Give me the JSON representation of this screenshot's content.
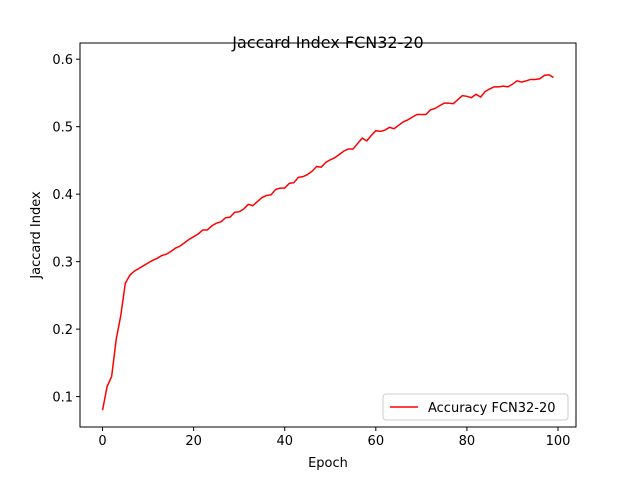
{
  "chart_data": {
    "type": "line",
    "title": "Jaccard Index FCN32-20",
    "x_label": "Epoch",
    "y_label": "Jaccard Index",
    "x": [
      0,
      1,
      2,
      3,
      4,
      5,
      6,
      7,
      8,
      9,
      10,
      11,
      12,
      13,
      14,
      15,
      16,
      17,
      18,
      19,
      20,
      21,
      22,
      23,
      24,
      25,
      26,
      27,
      28,
      29,
      30,
      31,
      32,
      33,
      34,
      35,
      36,
      37,
      38,
      39,
      40,
      41,
      42,
      43,
      44,
      45,
      46,
      47,
      48,
      49,
      50,
      51,
      52,
      53,
      54,
      55,
      56,
      57,
      58,
      59,
      60,
      61,
      62,
      63,
      64,
      65,
      66,
      67,
      68,
      69,
      70,
      71,
      72,
      73,
      74,
      75,
      76,
      77,
      78,
      79,
      80,
      81,
      82,
      83,
      84,
      85,
      86,
      87,
      88,
      89,
      90,
      91,
      92,
      93,
      94,
      95,
      96,
      97,
      98,
      99
    ],
    "series": [
      {
        "name": "Accuracy FCN32-20",
        "color": "#ff0000",
        "values": [
          0.08,
          0.115,
          0.13,
          0.185,
          0.22,
          0.268,
          0.28,
          0.286,
          0.29,
          0.294,
          0.298,
          0.302,
          0.305,
          0.309,
          0.311,
          0.315,
          0.32,
          0.323,
          0.328,
          0.333,
          0.337,
          0.341,
          0.347,
          0.347,
          0.353,
          0.357,
          0.359,
          0.365,
          0.366,
          0.373,
          0.374,
          0.378,
          0.385,
          0.383,
          0.389,
          0.395,
          0.398,
          0.399,
          0.407,
          0.409,
          0.409,
          0.416,
          0.417,
          0.425,
          0.426,
          0.429,
          0.434,
          0.441,
          0.44,
          0.447,
          0.451,
          0.454,
          0.459,
          0.464,
          0.467,
          0.467,
          0.475,
          0.483,
          0.479,
          0.487,
          0.494,
          0.493,
          0.495,
          0.499,
          0.497,
          0.502,
          0.507,
          0.51,
          0.514,
          0.518,
          0.518,
          0.518,
          0.525,
          0.527,
          0.531,
          0.535,
          0.535,
          0.534,
          0.54,
          0.546,
          0.545,
          0.543,
          0.548,
          0.544,
          0.552,
          0.556,
          0.559,
          0.559,
          0.56,
          0.559,
          0.563,
          0.568,
          0.566,
          0.568,
          0.57,
          0.57,
          0.571,
          0.576,
          0.577,
          0.573
        ]
      }
    ],
    "xlim": [
      -4.95,
      103.95
    ],
    "xticks": [
      0,
      20,
      40,
      60,
      80,
      100
    ],
    "ylim": [
      0.055,
      0.624
    ],
    "yticks": [
      0.1,
      0.2,
      0.3,
      0.4,
      0.5,
      0.6
    ],
    "grid": false,
    "legend_position": "lower-right"
  }
}
